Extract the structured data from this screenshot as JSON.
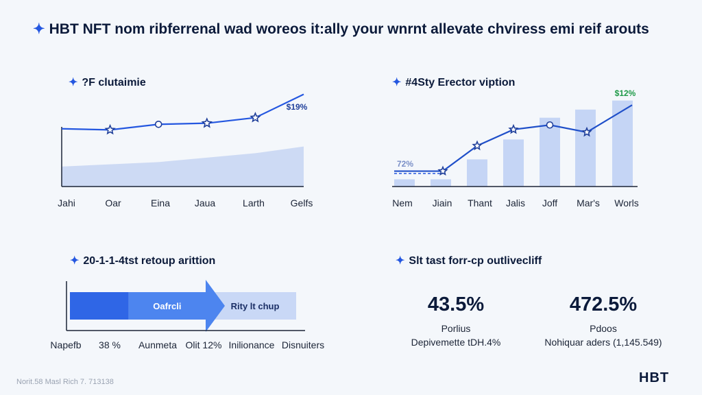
{
  "header": {
    "icon": "sparkle-icon",
    "title": "HBT NFT nom ribferrenal wad woreos it:ally your wnrnt allevate chviress emi reif arouts"
  },
  "panels": {
    "p1": {
      "title": "?F clutaimie"
    },
    "p2": {
      "title": "#4Sty Erector viption"
    },
    "p3": {
      "title": "20-1-1-4tst retoup arittion"
    },
    "p4": {
      "title": "Slt tast forr-cp outlivecliff"
    }
  },
  "colors": {
    "accent": "#2457e0",
    "fill_light": "#c9d6f3",
    "bar": "#c5d5f5",
    "green": "#1f9a48"
  },
  "chart_data": [
    {
      "type": "line",
      "categories": [
        "Jahi",
        "Oar",
        "Eina",
        "Jaua",
        "Larth",
        "Gelfs"
      ],
      "series": [
        {
          "values": [
            52,
            51,
            56,
            57,
            62,
            83
          ]
        },
        {
          "values": [
            18,
            20,
            22,
            26,
            30,
            36
          ]
        }
      ],
      "ylim": [
        0,
        100
      ],
      "annotations": [
        {
          "text": "$19%"
        }
      ]
    },
    {
      "type": "bar",
      "categories": [
        "Nem",
        "Jiain",
        "Thant",
        "Jalis",
        "Joff",
        "Mar's",
        "Worls"
      ],
      "series": [
        {
          "values": [
            8,
            8,
            30,
            52,
            76,
            85,
            95
          ]
        },
        {
          "values": [
            17,
            17,
            45,
            63,
            68,
            60,
            90
          ]
        }
      ],
      "ylim": [
        0,
        100
      ],
      "annotations": [
        {
          "text": "$12%"
        },
        {
          "text": "72%"
        }
      ]
    },
    {
      "type": "bar",
      "segments": [
        {
          "label": "",
          "value": 26
        },
        {
          "label": "Oafrcli",
          "value": 34
        },
        {
          "label": "Rity lt chup",
          "value": 40
        }
      ],
      "tick_labels": [
        "Napefb",
        "38  %",
        "Aunmeta",
        "Olit 12%",
        "Inilionance",
        "Disnuiters"
      ]
    }
  ],
  "metrics": [
    {
      "value": "43.5%",
      "label": "Porlius",
      "sub": "Depivemette tDH.4%"
    },
    {
      "value": "472.5%",
      "label": "Pdoos",
      "sub": "Nohiquar aders (1,145.549)"
    }
  ],
  "footer": {
    "text": "Norit.58 Masl Rich 7.  713138"
  },
  "brand": {
    "logo": "HBT"
  }
}
